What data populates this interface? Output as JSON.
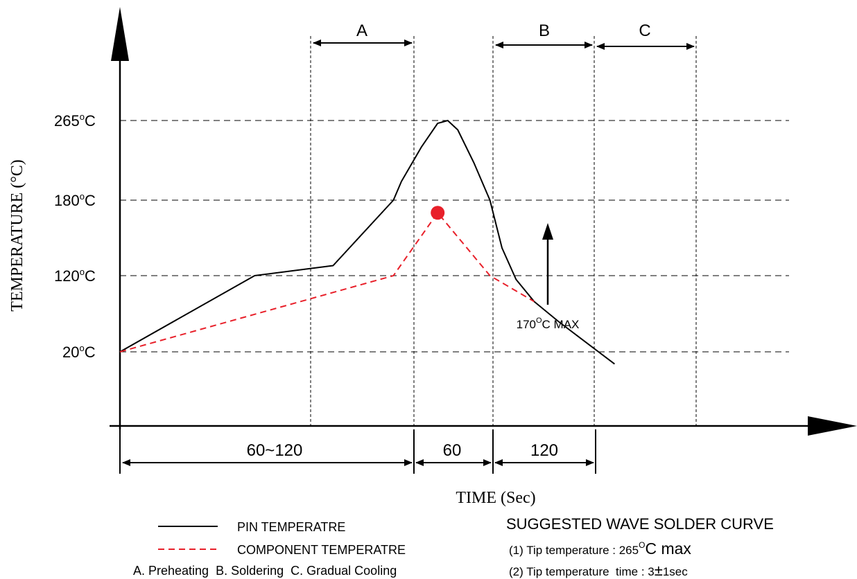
{
  "chart_data": {
    "type": "line",
    "title": "",
    "xlabel": "TIME (Sec)",
    "ylabel": "TEMPERATURE (°C)",
    "y_ticks": [
      {
        "label": "265",
        "value": 265
      },
      {
        "label": "180",
        "value": 180
      },
      {
        "label": "120",
        "value": 120
      },
      {
        "label": "20",
        "value": 20
      }
    ],
    "y_unit_sup": "o",
    "y_unit": "C",
    "grid": true,
    "series": [
      {
        "name": "PIN TEMPERATRE",
        "color": "#000000",
        "style": "solid",
        "points": [
          [
            0,
            20
          ],
          [
            67,
            120
          ],
          [
            106,
            128
          ],
          [
            136,
            180
          ],
          [
            140,
            200
          ],
          [
            150,
            237
          ],
          [
            158,
            262
          ],
          [
            163,
            265
          ],
          [
            168,
            255
          ],
          [
            176,
            220
          ],
          [
            184,
            180
          ],
          [
            190,
            142
          ],
          [
            197,
            115
          ],
          [
            206,
            86
          ],
          [
            218,
            60
          ],
          [
            230,
            36
          ],
          [
            246,
            4
          ]
        ]
      },
      {
        "name": "COMPONENT TEMPERATRE",
        "color": "#e8202a",
        "style": "dashed",
        "points": [
          [
            0,
            20
          ],
          [
            136,
            120
          ],
          [
            158,
            170
          ],
          [
            184,
            120
          ],
          [
            206,
            86
          ]
        ]
      }
    ],
    "peak_marker": {
      "x": 158,
      "y": 170,
      "color": "#e8202a"
    },
    "annotations": [
      {
        "text_pre": "170",
        "sup": "O",
        "text_post": "C MAX",
        "target": "component-peak"
      }
    ],
    "phase_labels": [
      "A",
      "B",
      "C"
    ],
    "time_segments": [
      "60~120",
      "60",
      "120"
    ],
    "legend_caption": "A. Preheating  B. Soldering  C. Gradual Cooling"
  },
  "notes": {
    "title": "SUGGESTED WAVE SOLDER CURVE",
    "line1": {
      "pre": "(1) Tip temperature : 265",
      "sup": "O",
      "unit": "C",
      "post": " max"
    },
    "line2": {
      "pre": "(2) Tip temperature  time : 3",
      "pm": "±",
      "post": "1sec"
    }
  }
}
